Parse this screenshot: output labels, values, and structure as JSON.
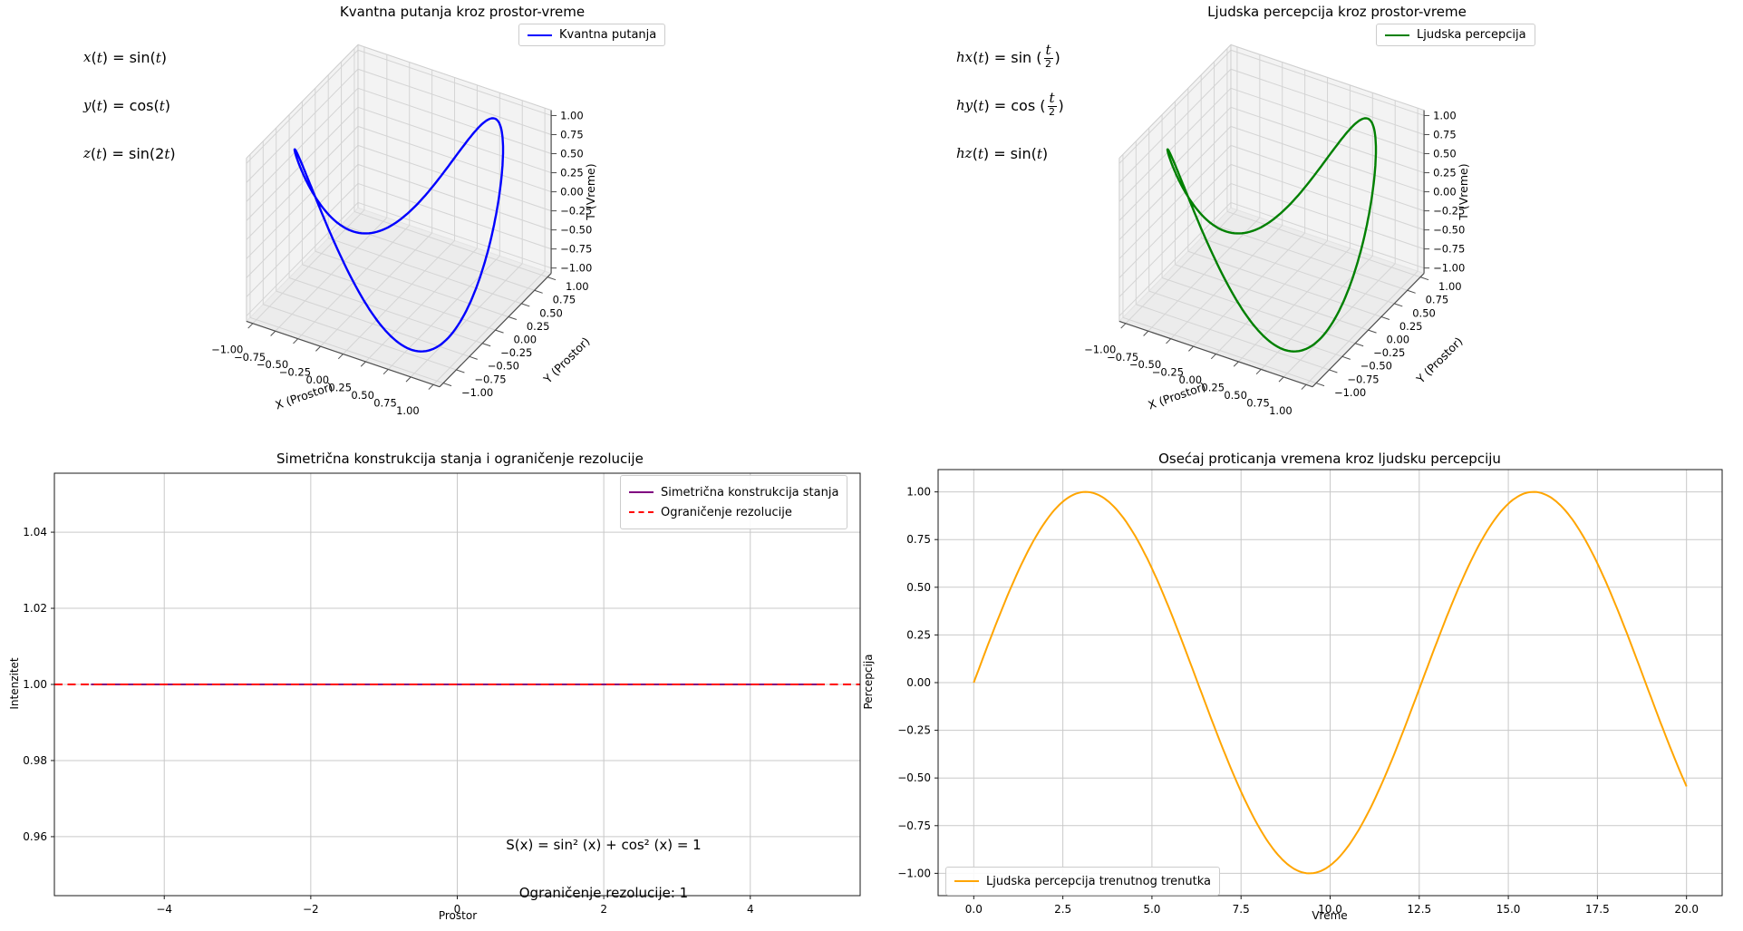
{
  "figure": {
    "background": "#ffffff"
  },
  "chart_data": [
    {
      "id": "kvantna-putanja-3d",
      "type": "line3d",
      "title": "Kvantna putanja kroz prostor-vreme",
      "legend": [
        {
          "label": "Kvantna putanja",
          "color": "#0000ff",
          "style": "solid"
        }
      ],
      "equations": [
        {
          "base": "x",
          "sub": "",
          "rest": "(t) = sin(t)",
          "frac": null,
          "tail": ""
        },
        {
          "base": "y",
          "sub": "",
          "rest": "(t) = cos(t)",
          "frac": null,
          "tail": ""
        },
        {
          "base": "z",
          "sub": "",
          "rest": "(t) = sin(2t)",
          "frac": null,
          "tail": ""
        }
      ],
      "xlabel": "X (Prostor)",
      "ylabel": "Y (Prostor)",
      "zlabel": "T (Vreme)",
      "tick_labels": [
        "−1.00",
        "−0.75",
        "−0.50",
        "−0.25",
        "0.00",
        "0.25",
        "0.50",
        "0.75",
        "1.00"
      ],
      "tick_values": [
        -1,
        -0.75,
        -0.5,
        -0.25,
        0,
        0.25,
        0.5,
        0.75,
        1
      ],
      "axis_range": [
        -1,
        1
      ],
      "curve": {
        "color": "#0000ff",
        "x_fn": "sin",
        "x_k": 1,
        "y_fn": "cos",
        "y_k": 1,
        "z_fn": "sin",
        "z_k": 2,
        "t_range": [
          0,
          6.2832
        ],
        "samples": 240
      }
    },
    {
      "id": "ljudska-percepcija-3d",
      "type": "line3d",
      "title": "Ljudska percepcija kroz prostor-vreme",
      "legend": [
        {
          "label": "Ljudska percepcija",
          "color": "#008000",
          "style": "solid"
        }
      ],
      "equations": [
        {
          "base": "h",
          "sub": "x",
          "rest": "(t) = sin (",
          "frac": {
            "num": "t",
            "den": "2"
          },
          "tail": ")"
        },
        {
          "base": "h",
          "sub": "y",
          "rest": "(t) = cos (",
          "frac": {
            "num": "t",
            "den": "2"
          },
          "tail": ")"
        },
        {
          "base": "h",
          "sub": "z",
          "rest": "(t) = sin(t)",
          "frac": null,
          "tail": ""
        }
      ],
      "xlabel": "X (Prostor)",
      "ylabel": "Y (Prostor)",
      "zlabel": "T (Vreme)",
      "tick_labels": [
        "−1.00",
        "−0.75",
        "−0.50",
        "−0.25",
        "0.00",
        "0.25",
        "0.50",
        "0.75",
        "1.00"
      ],
      "tick_values": [
        -1,
        -0.75,
        -0.5,
        -0.25,
        0,
        0.25,
        0.5,
        0.75,
        1
      ],
      "axis_range": [
        -1,
        1
      ],
      "curve": {
        "color": "#008000",
        "x_fn": "sin",
        "x_k": 0.5,
        "y_fn": "cos",
        "y_k": 0.5,
        "z_fn": "sin",
        "z_k": 1,
        "t_range": [
          0,
          12.5664
        ],
        "samples": 240
      }
    },
    {
      "id": "simetricna-konstrukcija",
      "type": "line",
      "title": "Simetrična konstrukcija stanja i ograničenje rezolucije",
      "xlabel": "Prostor",
      "ylabel": "Intenzitet",
      "xlim": [
        -5.5,
        5.5
      ],
      "ylim": [
        0.9445,
        1.0555
      ],
      "xticks": {
        "values": [
          -4,
          -2,
          0,
          2,
          4
        ],
        "labels": [
          "−4",
          "−2",
          "0",
          "2",
          "4"
        ]
      },
      "yticks": {
        "values": [
          0.96,
          0.98,
          1.0,
          1.02,
          1.04
        ],
        "labels": [
          "0.96",
          "0.98",
          "1.00",
          "1.02",
          "1.04"
        ]
      },
      "grid": true,
      "series": [
        {
          "name": "Simetrična konstrukcija stanja",
          "color": "#800080",
          "style": "solid",
          "width": 2,
          "gen": {
            "const": 1,
            "range": [
              -5,
              5
            ]
          }
        },
        {
          "name": "Ograničenje rezolucije",
          "color": "#ff0000",
          "style": "dashed",
          "width": 2,
          "gen": {
            "const": 1,
            "range": [
              -5.5,
              5.5
            ]
          }
        }
      ],
      "legend_loc": "upper right",
      "annotations": [
        {
          "text": "S(x) = sin² (x) + cos² (x) = 1",
          "x": 2,
          "y": 0.9573
        },
        {
          "text": "Ograničenje rezolucije: 1",
          "x": 2,
          "y": 0.9449
        }
      ]
    },
    {
      "id": "osecaj-proticanja-vremena",
      "type": "line",
      "title": "Osećaj proticanja vremena kroz ljudsku percepciju",
      "xlabel": "Vreme",
      "ylabel": "Percepcija",
      "xlim": [
        -1,
        21
      ],
      "ylim": [
        -1.117,
        1.117
      ],
      "xticks": {
        "values": [
          0,
          2.5,
          5,
          7.5,
          10,
          12.5,
          15,
          17.5,
          20
        ],
        "labels": [
          "0.0",
          "2.5",
          "5.0",
          "7.5",
          "10.0",
          "12.5",
          "15.0",
          "17.5",
          "20.0"
        ]
      },
      "yticks": {
        "values": [
          -1,
          -0.75,
          -0.5,
          -0.25,
          0,
          0.25,
          0.5,
          0.75,
          1
        ],
        "labels": [
          "−1.00",
          "−0.75",
          "−0.50",
          "−0.25",
          "0.00",
          "0.25",
          "0.50",
          "0.75",
          "1.00"
        ]
      },
      "grid": true,
      "series": [
        {
          "name": "Ljudska percepcija trenutnog trenutka",
          "color": "#ffa500",
          "style": "solid",
          "width": 2,
          "gen": {
            "fn": "sin",
            "k": 0.5,
            "range": [
              0,
              20
            ],
            "n": 300
          }
        }
      ],
      "legend_loc": "lower left",
      "annotations": []
    }
  ],
  "colors": {
    "quantum_line": "#0000ff",
    "human_line": "#008000",
    "symmetry_line": "#800080",
    "resolution_line": "#ff0000",
    "perception_line": "#ffa500",
    "grid": "#c9c9c9",
    "pane": "#f2f2f2"
  }
}
